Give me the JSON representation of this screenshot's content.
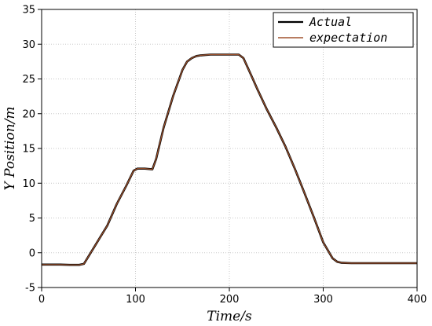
{
  "chart_data": {
    "type": "line",
    "title": "",
    "xlabel": "Time/s",
    "ylabel": "Y Position/m",
    "xlim": [
      0,
      400
    ],
    "ylim": [
      -5,
      35
    ],
    "xticks": [
      0,
      100,
      200,
      300,
      400
    ],
    "yticks": [
      -5,
      0,
      5,
      10,
      15,
      20,
      25,
      30,
      35
    ],
    "grid": true,
    "legend_position": "top-right",
    "series": [
      {
        "name": "Actual",
        "color": "#000000",
        "x": [
          0,
          20,
          30,
          40,
          45,
          50,
          60,
          70,
          80,
          90,
          98,
          102,
          110,
          118,
          122,
          130,
          140,
          150,
          155,
          160,
          165,
          170,
          180,
          190,
          200,
          210,
          215,
          220,
          225,
          230,
          240,
          250,
          260,
          270,
          280,
          290,
          300,
          310,
          315,
          320,
          330,
          340,
          360,
          380,
          400
        ],
        "y": [
          -1.7,
          -1.7,
          -1.75,
          -1.75,
          -1.6,
          -0.5,
          1.7,
          3.9,
          7.0,
          9.6,
          11.8,
          12.1,
          12.1,
          12.0,
          13.5,
          18.0,
          22.5,
          26.3,
          27.5,
          28.0,
          28.3,
          28.4,
          28.5,
          28.5,
          28.5,
          28.5,
          28.0,
          26.5,
          25.0,
          23.5,
          20.6,
          18.0,
          15.2,
          12.0,
          8.6,
          5.1,
          1.5,
          -0.8,
          -1.3,
          -1.45,
          -1.5,
          -1.5,
          -1.5,
          -1.5,
          -1.5
        ]
      },
      {
        "name": "expectation",
        "color": "#a0522d",
        "x": [
          0,
          20,
          30,
          40,
          45,
          50,
          60,
          70,
          80,
          90,
          98,
          102,
          110,
          118,
          122,
          130,
          140,
          150,
          155,
          160,
          165,
          170,
          180,
          190,
          200,
          210,
          215,
          220,
          225,
          230,
          240,
          250,
          260,
          270,
          280,
          290,
          300,
          310,
          315,
          320,
          330,
          340,
          360,
          380,
          400
        ],
        "y": [
          -1.7,
          -1.7,
          -1.75,
          -1.75,
          -1.6,
          -0.5,
          1.7,
          3.9,
          7.0,
          9.6,
          11.8,
          12.1,
          12.1,
          12.0,
          13.5,
          18.0,
          22.5,
          26.3,
          27.5,
          28.0,
          28.3,
          28.4,
          28.5,
          28.5,
          28.5,
          28.5,
          28.0,
          26.5,
          25.0,
          23.5,
          20.6,
          18.0,
          15.2,
          12.0,
          8.6,
          5.1,
          1.5,
          -0.8,
          -1.3,
          -1.45,
          -1.5,
          -1.5,
          -1.5,
          -1.5,
          -1.5
        ]
      }
    ]
  }
}
